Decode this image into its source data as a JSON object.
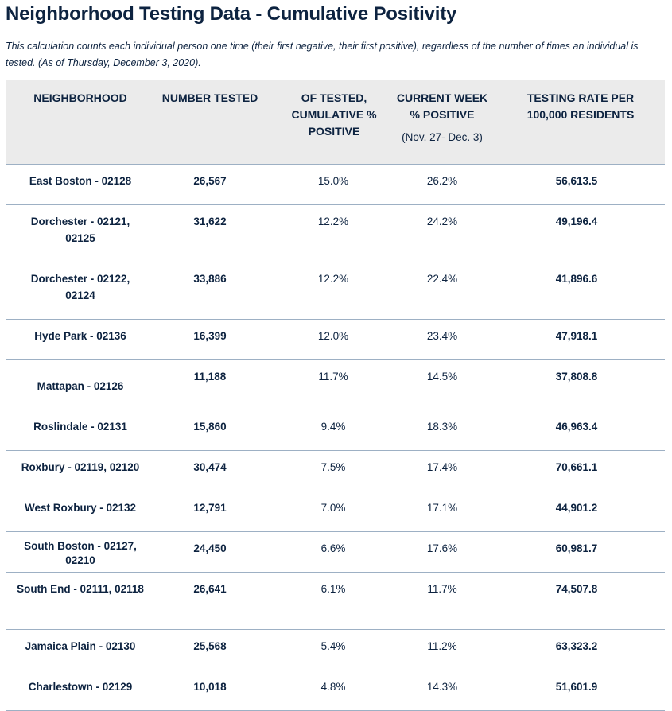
{
  "title": "Neighborhood Testing Data - Cumulative Positivity",
  "note": "This calculation counts each individual person one time (their first negative, their first positive), regardless of the number of times an individual is tested. (As of Thursday, December 3, 2020).",
  "headers": {
    "neighborhood": "NEIGHBORHOOD",
    "number_tested": "NUMBER TESTED",
    "cumulative_positive": "OF TESTED, CUMULATIVE % POSITIVE",
    "current_week": "CURRENT WEEK % POSITIVE",
    "current_week_range": "(Nov. 27- Dec. 3)",
    "testing_rate": "TESTING RATE PER 100,000 RESIDENTS"
  },
  "rows": [
    {
      "neighborhood": "East Boston - 02128",
      "tested": "26,567",
      "cumulative": "15.0%",
      "week": "26.2%",
      "rate": "56,613.5"
    },
    {
      "neighborhood": "Dorchester - 02121, 02125",
      "tested": "31,622",
      "cumulative": "12.2%",
      "week": "24.2%",
      "rate": "49,196.4"
    },
    {
      "neighborhood": "Dorchester - 02122, 02124",
      "tested": "33,886",
      "cumulative": "12.2%",
      "week": "22.4%",
      "rate": "41,896.6"
    },
    {
      "neighborhood": "Hyde Park - 02136",
      "tested": "16,399",
      "cumulative": "12.0%",
      "week": "23.4%",
      "rate": "47,918.1"
    },
    {
      "neighborhood": "Mattapan - 02126",
      "tested": "11,188",
      "cumulative": "11.7%",
      "week": "14.5%",
      "rate": "37,808.8"
    },
    {
      "neighborhood": "Roslindale - 02131",
      "tested": "15,860",
      "cumulative": "9.4%",
      "week": "18.3%",
      "rate": "46,963.4"
    },
    {
      "neighborhood": "Roxbury - 02119, 02120",
      "tested": "30,474",
      "cumulative": "7.5%",
      "week": "17.4%",
      "rate": "70,661.1"
    },
    {
      "neighborhood": "West Roxbury - 02132",
      "tested": "12,791",
      "cumulative": "7.0%",
      "week": "17.1%",
      "rate": "44,901.2"
    },
    {
      "neighborhood": "South Boston - 02127, 02210",
      "tested": "24,450",
      "cumulative": "6.6%",
      "week": "17.6%",
      "rate": "60,981.7"
    },
    {
      "neighborhood": "South End - 02111, 02118",
      "tested": "26,641",
      "cumulative": "6.1%",
      "week": "11.7%",
      "rate": "74,507.8"
    },
    {
      "neighborhood": "Jamaica Plain - 02130",
      "tested": "25,568",
      "cumulative": "5.4%",
      "week": "11.2%",
      "rate": "63,323.2"
    },
    {
      "neighborhood": "Charlestown - 02129",
      "tested": "10,018",
      "cumulative": "4.8%",
      "week": "14.3%",
      "rate": "51,601.9"
    }
  ]
}
